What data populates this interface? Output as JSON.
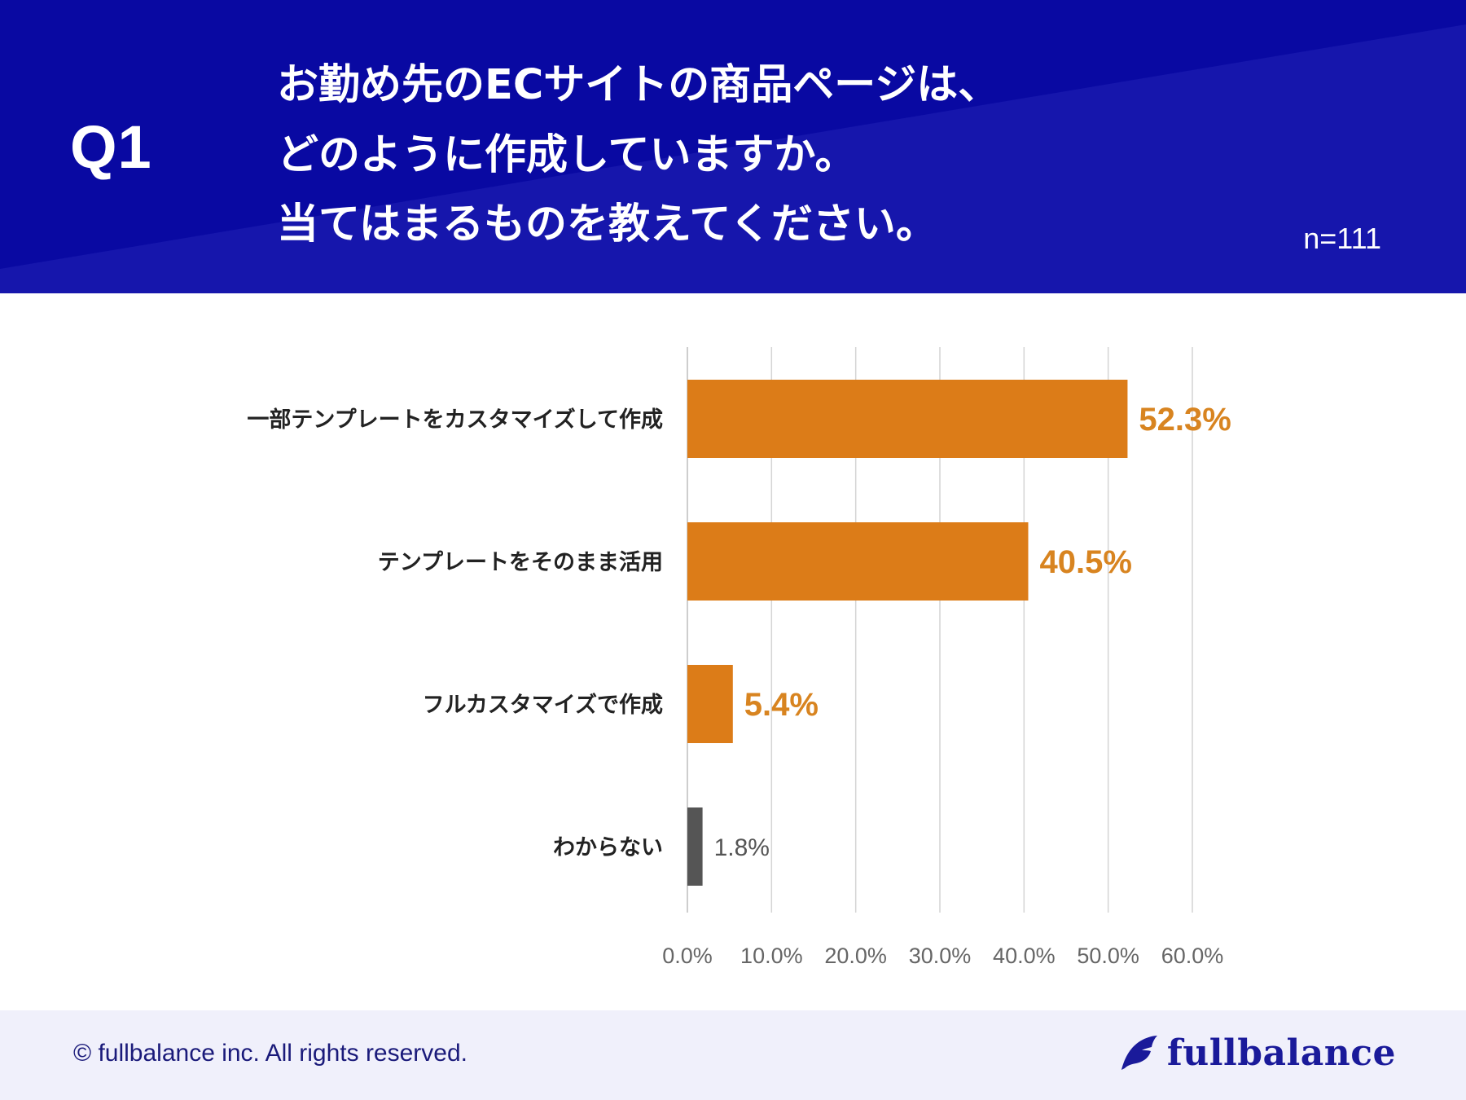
{
  "header": {
    "question_label": "Q1",
    "question_lines": [
      "お勤め先のECサイトの商品ページは、",
      "どのように作成していますか。",
      "当てはまるものを教えてください。"
    ],
    "sample_size": "n=111"
  },
  "chart_data": {
    "type": "bar",
    "orientation": "horizontal",
    "title": "お勤め先のECサイトの商品ページは、どのように作成していますか。当てはまるものを教えてください。",
    "categories": [
      "一部テンプレートをカスタマイズして作成",
      "テンプレートをそのまま活用",
      "フルカスタマイズで作成",
      "わからない"
    ],
    "values": [
      52.3,
      40.5,
      5.4,
      1.8
    ],
    "value_labels": [
      "52.3%",
      "40.5%",
      "5.4%",
      "1.8%"
    ],
    "bar_colors": [
      "#dc7c18",
      "#dc7c18",
      "#dc7c18",
      "#555555"
    ],
    "label_colors": [
      "#d88420",
      "#d88420",
      "#d88420",
      "#555555"
    ],
    "xlim": [
      0,
      60
    ],
    "x_ticks": [
      0,
      10,
      20,
      30,
      40,
      50,
      60
    ],
    "x_tick_labels": [
      "0.0%",
      "10.0%",
      "20.0%",
      "30.0%",
      "40.0%",
      "50.0%",
      "60.0%"
    ],
    "grid": true,
    "xlabel": "",
    "ylabel": ""
  },
  "footer": {
    "copyright": "© fullbalance inc. All rights reserved.",
    "brand_name": "fullbalance",
    "brand_icon": "leaf-icon"
  },
  "colors": {
    "header_bg": "#0a0aa8",
    "footer_bg": "#f0f0fb",
    "accent": "#dc7c18",
    "neutral_bar": "#555555"
  }
}
